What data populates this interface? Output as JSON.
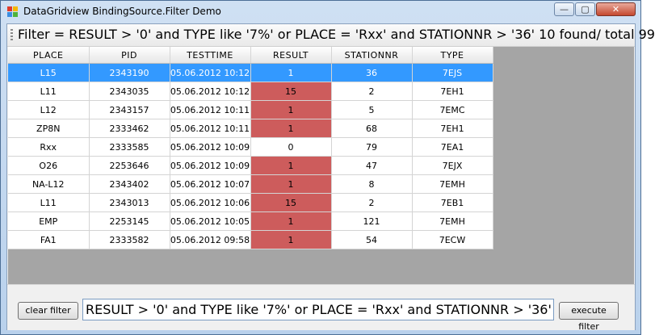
{
  "window": {
    "title": "DataGridview BindingSource.Filter Demo",
    "controls": {
      "minimize": "—",
      "maximize": "▢",
      "close": "✕"
    }
  },
  "colors": {
    "selected_row": "#3399ff",
    "result_highlight": "#cd5c5c",
    "grid_background": "#a5a5a5"
  },
  "status": {
    "filter_text": "Filter = RESULT > '0' and TYPE like '7%' or PLACE = 'Rxx' and STATIONNR > '36'  10 found/ total 99"
  },
  "grid": {
    "columns": [
      "PLACE",
      "PID",
      "TESTTIME",
      "RESULT",
      "STATIONNR",
      "TYPE"
    ],
    "rows": [
      {
        "place": "L15",
        "pid": "2343190",
        "testtime": "05.06.2012 10:12",
        "result": "1",
        "stationnr": "36",
        "type": "7EJS",
        "selected": true,
        "highlight": false
      },
      {
        "place": "L11",
        "pid": "2343035",
        "testtime": "05.06.2012 10:12",
        "result": "15",
        "stationnr": "2",
        "type": "7EH1",
        "selected": false,
        "highlight": true
      },
      {
        "place": "L12",
        "pid": "2343157",
        "testtime": "05.06.2012 10:11",
        "result": "1",
        "stationnr": "5",
        "type": "7EMC",
        "selected": false,
        "highlight": true
      },
      {
        "place": "ZP8N",
        "pid": "2333462",
        "testtime": "05.06.2012 10:11",
        "result": "1",
        "stationnr": "68",
        "type": "7EH1",
        "selected": false,
        "highlight": true
      },
      {
        "place": "Rxx",
        "pid": "2333585",
        "testtime": "05.06.2012 10:09",
        "result": "0",
        "stationnr": "79",
        "type": "7EA1",
        "selected": false,
        "highlight": false
      },
      {
        "place": "O26",
        "pid": "2253646",
        "testtime": "05.06.2012 10:09",
        "result": "1",
        "stationnr": "47",
        "type": "7EJX",
        "selected": false,
        "highlight": true
      },
      {
        "place": "NA-L12",
        "pid": "2343402",
        "testtime": "05.06.2012 10:07",
        "result": "1",
        "stationnr": "8",
        "type": "7EMH",
        "selected": false,
        "highlight": true
      },
      {
        "place": "L11",
        "pid": "2343013",
        "testtime": "05.06.2012 10:06",
        "result": "15",
        "stationnr": "2",
        "type": "7EB1",
        "selected": false,
        "highlight": true
      },
      {
        "place": "EMP",
        "pid": "2253145",
        "testtime": "05.06.2012 10:05",
        "result": "1",
        "stationnr": "121",
        "type": "7EMH",
        "selected": false,
        "highlight": true
      },
      {
        "place": "FA1",
        "pid": "2333582",
        "testtime": "05.06.2012 09:58",
        "result": "1",
        "stationnr": "54",
        "type": "7ECW",
        "selected": false,
        "highlight": true
      }
    ]
  },
  "footer": {
    "clear_label": "clear filter",
    "filter_value": "RESULT > '0' and TYPE like '7%' or PLACE = 'Rxx' and STATIONNR > '36'",
    "execute_label": "execute filter"
  }
}
